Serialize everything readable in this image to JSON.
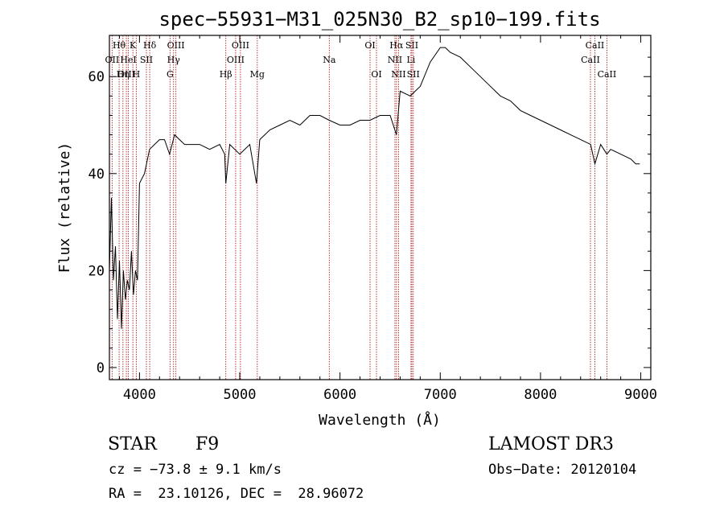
{
  "chart_data": {
    "type": "line",
    "title": "spec−55931−M31_025N30_B2_sp10−199.fits",
    "xlabel": "Wavelength (Å)",
    "ylabel": "Flux (relative)",
    "xlim": [
      3700,
      9100
    ],
    "ylim": [
      -2.5,
      68.5
    ],
    "x_ticks": [
      4000,
      5000,
      6000,
      7000,
      8000,
      9000
    ],
    "y_ticks": [
      0,
      20,
      40,
      60
    ],
    "grid": false,
    "series": [
      {
        "name": "spectrum",
        "x": [
          3700,
          3720,
          3740,
          3760,
          3780,
          3800,
          3820,
          3840,
          3860,
          3880,
          3900,
          3920,
          3940,
          3960,
          3980,
          4000,
          4050,
          4100,
          4150,
          4200,
          4250,
          4300,
          4350,
          4400,
          4450,
          4500,
          4600,
          4700,
          4800,
          4850,
          4861,
          4900,
          4950,
          5000,
          5100,
          5167,
          5200,
          5300,
          5400,
          5500,
          5600,
          5700,
          5800,
          5893,
          6000,
          6100,
          6200,
          6300,
          6400,
          6500,
          6563,
          6600,
          6700,
          6800,
          6900,
          7000,
          7050,
          7100,
          7200,
          7300,
          7400,
          7500,
          7600,
          7700,
          7800,
          7900,
          8000,
          8100,
          8200,
          8300,
          8400,
          8500,
          8542,
          8600,
          8662,
          8700,
          8800,
          8900,
          8950,
          8990
        ],
        "y": [
          20,
          35,
          18,
          25,
          10,
          22,
          8,
          20,
          14,
          18,
          16,
          24,
          15,
          20,
          18,
          38,
          40,
          45,
          46,
          47,
          47,
          44,
          48,
          47,
          46,
          46,
          46,
          45,
          46,
          44,
          38,
          46,
          45,
          44,
          46,
          38,
          47,
          49,
          50,
          51,
          50,
          52,
          52,
          51,
          50,
          50,
          51,
          51,
          52,
          52,
          48,
          57,
          56,
          58,
          63,
          66,
          66,
          65,
          64,
          62,
          60,
          58,
          56,
          55,
          53,
          52,
          51,
          50,
          49,
          48,
          47,
          46,
          42,
          46,
          44,
          45,
          44,
          43,
          42,
          42
        ]
      }
    ],
    "line_features": [
      {
        "label": "Hθ",
        "wavelength": 3797,
        "row": 0
      },
      {
        "label": "OII",
        "wavelength": 3727,
        "row": 1
      },
      {
        "label": "OIII",
        "wavelength": 3869,
        "row": 2
      },
      {
        "label": "HeI",
        "wavelength": 3889,
        "row": 1
      },
      {
        "label": "Hη",
        "wavelength": 3835,
        "row": 2
      },
      {
        "label": "K",
        "wavelength": 3934,
        "row": 0
      },
      {
        "label": "SII",
        "wavelength": 4069,
        "row": 1
      },
      {
        "label": "H",
        "wavelength": 3968,
        "row": 2
      },
      {
        "label": "Hδ",
        "wavelength": 4102,
        "row": 0
      },
      {
        "label": "OIII",
        "wavelength": 4363,
        "row": 0
      },
      {
        "label": "Hγ",
        "wavelength": 4340,
        "row": 1
      },
      {
        "label": "G",
        "wavelength": 4305,
        "row": 2
      },
      {
        "label": "Hβ",
        "wavelength": 4861,
        "row": 2
      },
      {
        "label": "OIII",
        "wavelength": 5007,
        "row": 0
      },
      {
        "label": "OIII",
        "wavelength": 4959,
        "row": 1
      },
      {
        "label": "Mg",
        "wavelength": 5175,
        "row": 2
      },
      {
        "label": "Na",
        "wavelength": 5893,
        "row": 1
      },
      {
        "label": "OI",
        "wavelength": 6300,
        "row": 0
      },
      {
        "label": "OI",
        "wavelength": 6364,
        "row": 2
      },
      {
        "label": "Hα",
        "wavelength": 6563,
        "row": 0
      },
      {
        "label": "NII",
        "wavelength": 6548,
        "row": 1
      },
      {
        "label": "NII",
        "wavelength": 6584,
        "row": 2
      },
      {
        "label": "SII",
        "wavelength": 6717,
        "row": 0
      },
      {
        "label": "Li",
        "wavelength": 6708,
        "row": 1
      },
      {
        "label": "SII",
        "wavelength": 6731,
        "row": 2
      },
      {
        "label": "CaII",
        "wavelength": 8542,
        "row": 0
      },
      {
        "label": "CaII",
        "wavelength": 8498,
        "row": 1
      },
      {
        "label": "CaII",
        "wavelength": 8662,
        "row": 2
      }
    ]
  },
  "info": {
    "class_label": "STAR",
    "subclass": "F9",
    "redshift": "cz = −73.8 ± 9.1 km/s",
    "coords": "RA =  23.10126, DEC =  28.96072",
    "survey": "LAMOST DR3",
    "obs_date": "Obs−Date: 20120104"
  },
  "colors": {
    "line_marker": "#b22222",
    "axis": "#000000",
    "spectrum": "#000000"
  }
}
